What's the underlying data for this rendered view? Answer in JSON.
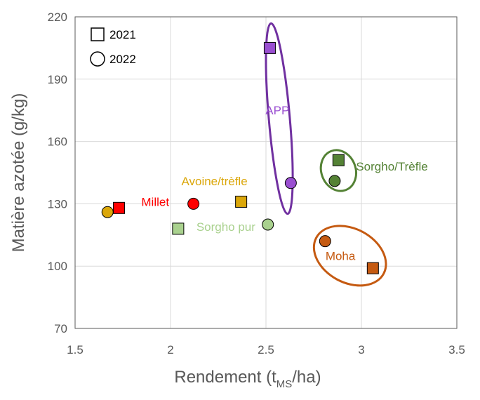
{
  "chart_data": {
    "type": "scatter",
    "xlabel": {
      "main": "Rendement (t",
      "sub": "MS",
      "end": "/ha)"
    },
    "ylabel": "Matière azotée (g/kg)",
    "xlim": [
      1.5,
      3.5
    ],
    "ylim": [
      70,
      220
    ],
    "xticks": [
      1.5,
      2,
      2.5,
      3,
      3.5
    ],
    "xtick_labels": [
      "1.5",
      "2",
      "2.5",
      "3",
      "3.5"
    ],
    "yticks": [
      70,
      100,
      130,
      160,
      190,
      220
    ],
    "ytick_labels": [
      "70",
      "100",
      "130",
      "160",
      "190",
      "220"
    ],
    "grid": true,
    "legend": {
      "position": "top-left",
      "entries": [
        {
          "label": "2021",
          "marker": "square"
        },
        {
          "label": "2022",
          "marker": "circle"
        }
      ]
    },
    "points": [
      {
        "group": "Millet",
        "year": "2021",
        "marker": "square",
        "x": 1.73,
        "y": 128,
        "color": "#ff0000"
      },
      {
        "group": "Millet",
        "year": "2022",
        "marker": "circle",
        "x": 2.12,
        "y": 130,
        "color": "#ff0000"
      },
      {
        "group": "Avoine/trèfle",
        "year": "2021",
        "marker": "square",
        "x": 2.37,
        "y": 131,
        "color": "#dba70a"
      },
      {
        "group": "Avoine/trèfle",
        "year": "2022",
        "marker": "circle",
        "x": 1.67,
        "y": 126,
        "color": "#dba70a"
      },
      {
        "group": "Sorgho pur",
        "year": "2021",
        "marker": "square",
        "x": 2.04,
        "y": 118,
        "color": "#a9d18e"
      },
      {
        "group": "Sorgho pur",
        "year": "2022",
        "marker": "circle",
        "x": 2.51,
        "y": 120,
        "color": "#a9d18e"
      },
      {
        "group": "APP",
        "year": "2021",
        "marker": "square",
        "x": 2.52,
        "y": 205,
        "color": "#9a4fd1"
      },
      {
        "group": "APP",
        "year": "2022",
        "marker": "circle",
        "x": 2.63,
        "y": 140,
        "color": "#9a4fd1"
      },
      {
        "group": "Sorgho/Trèfle",
        "year": "2021",
        "marker": "square",
        "x": 2.88,
        "y": 151,
        "color": "#548235"
      },
      {
        "group": "Sorgho/Trèfle",
        "year": "2022",
        "marker": "circle",
        "x": 2.86,
        "y": 141,
        "color": "#548235"
      },
      {
        "group": "Moha",
        "year": "2021",
        "marker": "square",
        "x": 3.06,
        "y": 99,
        "color": "#c55a11"
      },
      {
        "group": "Moha",
        "year": "2022",
        "marker": "circle",
        "x": 2.81,
        "y": 112,
        "color": "#c55a11"
      }
    ],
    "labels": [
      {
        "text": "Millet",
        "color": "#ff0000",
        "x": 1.92,
        "y": 129,
        "anchor": "middle"
      },
      {
        "text": "Avoine/trèfle",
        "color": "#dba70a",
        "x": 2.23,
        "y": 139,
        "anchor": "middle"
      },
      {
        "text": "Sorgho pur",
        "color": "#a9d18e",
        "x": 2.29,
        "y": 117,
        "anchor": "middle"
      },
      {
        "text": "APP",
        "color": "#9a4fd1",
        "x": 2.56,
        "y": 173,
        "anchor": "middle"
      },
      {
        "text": "Sorgho/Trèfle",
        "color": "#548235",
        "x": 3.16,
        "y": 146,
        "anchor": "middle"
      },
      {
        "text": "Moha",
        "color": "#c55a11",
        "x": 2.89,
        "y": 103,
        "anchor": "middle"
      }
    ],
    "ellipses": [
      {
        "group": "APP",
        "color": "#7030a0",
        "cx": 2.57,
        "cy": 171,
        "rx": 0.055,
        "ry": 46,
        "rotate": -5
      },
      {
        "group": "Sorgho/Trèfle",
        "color": "#548235",
        "cx": 2.88,
        "cy": 146,
        "rx": 0.09,
        "ry": 10,
        "rotate": -20
      },
      {
        "group": "Moha",
        "color": "#c55a11",
        "cx": 2.94,
        "cy": 105,
        "rx": 0.2,
        "ry": 13,
        "rotate": 28
      }
    ]
  }
}
